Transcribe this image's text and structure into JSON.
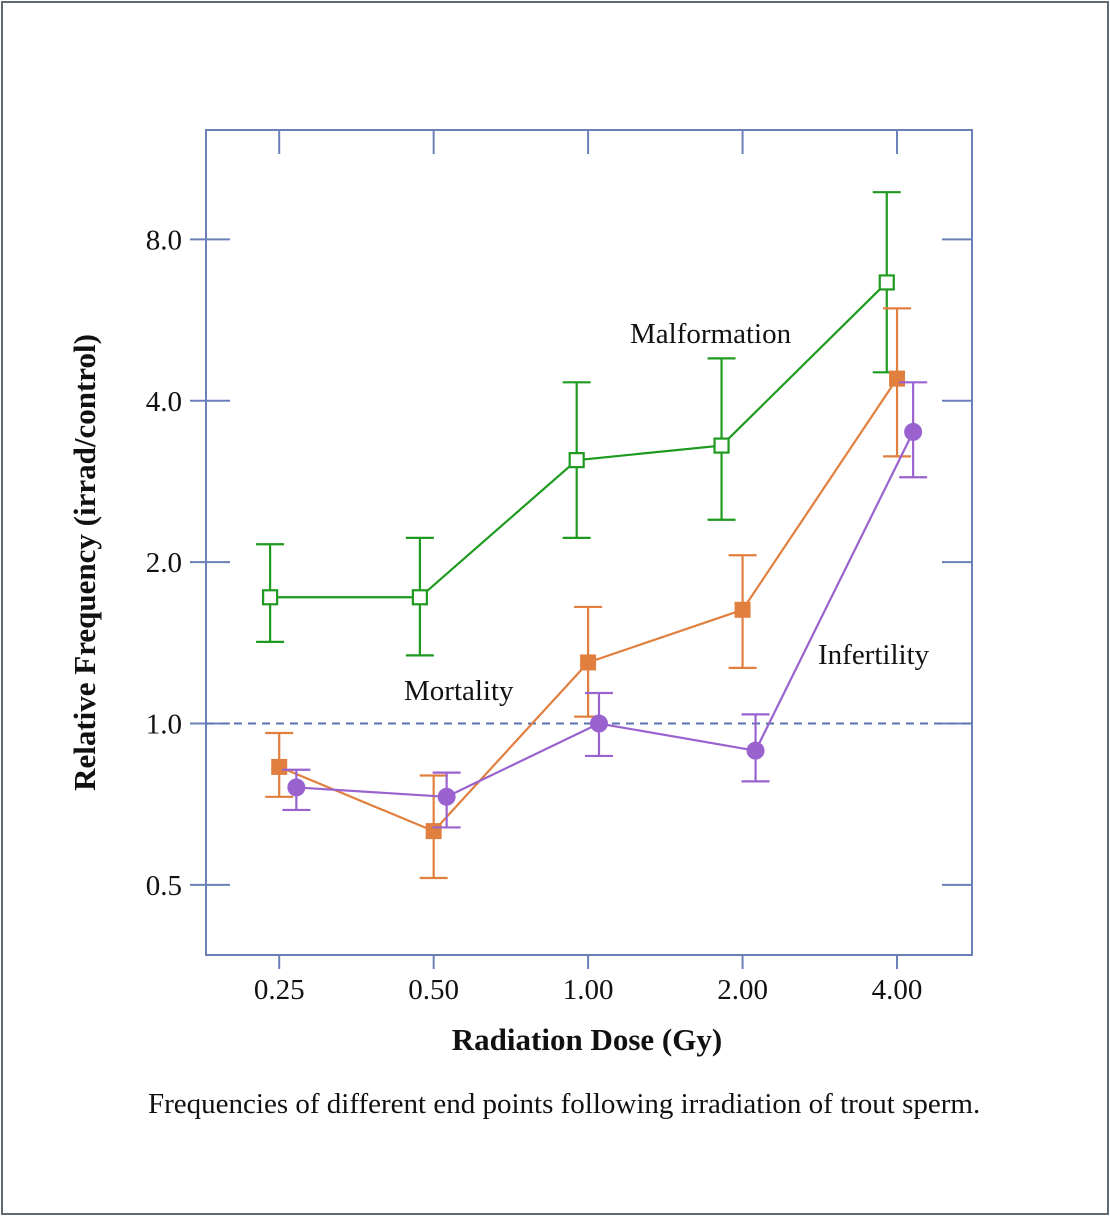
{
  "chart_data": {
    "type": "line",
    "xlabel": "Radiation Dose (Gy)",
    "ylabel": "Relative Frequency (irrad/control)",
    "x_scale": "log2",
    "y_scale": "log2",
    "xlim": [
      0.18,
      5.6
    ],
    "ylim": [
      0.37,
      12.8
    ],
    "xticks": [
      0.25,
      0.5,
      1.0,
      2.0,
      4.0
    ],
    "xtick_labels": [
      "0.25",
      "0.50",
      "1.00",
      "2.00",
      "4.00"
    ],
    "yticks": [
      0.5,
      1.0,
      2.0,
      4.0,
      8.0
    ],
    "ytick_labels": [
      "0.5",
      "1.0",
      "2.0",
      "4.0",
      "8.0"
    ],
    "reference_line": {
      "y": 1.0,
      "style": "dashed",
      "color": "#5a72b0"
    },
    "grid": false,
    "series": [
      {
        "name": "Malformation",
        "color": "#1e9a1e",
        "marker": "open-square",
        "points": [
          {
            "x": 0.24,
            "y": 1.72,
            "lo": 1.42,
            "hi": 2.16
          },
          {
            "x": 0.47,
            "y": 1.72,
            "lo": 1.34,
            "hi": 2.22
          },
          {
            "x": 0.95,
            "y": 3.1,
            "lo": 2.22,
            "hi": 4.33
          },
          {
            "x": 1.82,
            "y": 3.3,
            "lo": 2.4,
            "hi": 4.8
          },
          {
            "x": 3.82,
            "y": 6.65,
            "lo": 4.52,
            "hi": 9.8
          }
        ]
      },
      {
        "name": "Mortality",
        "color": "#e07f3e",
        "marker": "filled-square",
        "points": [
          {
            "x": 0.25,
            "y": 0.83,
            "lo": 0.73,
            "hi": 0.96
          },
          {
            "x": 0.5,
            "y": 0.63,
            "lo": 0.515,
            "hi": 0.8
          },
          {
            "x": 1.0,
            "y": 1.3,
            "lo": 1.03,
            "hi": 1.65
          },
          {
            "x": 2.0,
            "y": 1.63,
            "lo": 1.27,
            "hi": 2.06
          },
          {
            "x": 4.0,
            "y": 4.4,
            "lo": 3.15,
            "hi": 5.95
          }
        ]
      },
      {
        "name": "Infertility",
        "color": "#9a62cf",
        "marker": "filled-circle",
        "points": [
          {
            "x": 0.27,
            "y": 0.76,
            "lo": 0.69,
            "hi": 0.82
          },
          {
            "x": 0.53,
            "y": 0.73,
            "lo": 0.64,
            "hi": 0.81
          },
          {
            "x": 1.05,
            "y": 1.0,
            "lo": 0.87,
            "hi": 1.14
          },
          {
            "x": 2.12,
            "y": 0.89,
            "lo": 0.78,
            "hi": 1.04
          },
          {
            "x": 4.3,
            "y": 3.5,
            "lo": 2.88,
            "hi": 4.33
          }
        ]
      }
    ],
    "annotations": [
      {
        "text": "Malformation",
        "series": "Malformation"
      },
      {
        "text": "Mortality",
        "series": "Mortality"
      },
      {
        "text": "Infertility",
        "series": "Infertility"
      }
    ]
  },
  "caption": "Frequencies of different end points following irradiation of trout sperm.",
  "axis_color": "#6b80b8"
}
